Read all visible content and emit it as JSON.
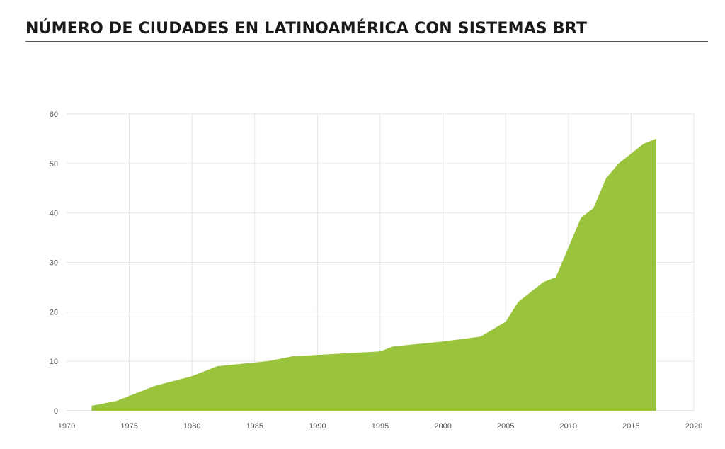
{
  "title": "NÚMERO DE CIUDADES EN LATINOAMÉRICA CON SISTEMAS BRT",
  "chart_data": {
    "type": "area",
    "title": "NÚMERO DE CIUDADES EN LATINOAMÉRICA CON SISTEMAS BRT",
    "xlabel": "",
    "ylabel": "",
    "xlim": [
      1970,
      2020
    ],
    "ylim": [
      0,
      60
    ],
    "x_ticks": [
      1970,
      1975,
      1980,
      1985,
      1990,
      1995,
      2000,
      2005,
      2010,
      2015,
      2020
    ],
    "y_ticks": [
      0,
      10,
      20,
      30,
      40,
      50,
      60
    ],
    "grid": true,
    "color": "#9ac43b",
    "x": [
      1972,
      1974,
      1976,
      1977,
      1980,
      1982,
      1986,
      1988,
      1995,
      1996,
      2000,
      2003,
      2005,
      2006,
      2008,
      2009,
      2011,
      2012,
      2013,
      2014,
      2015,
      2016,
      2017
    ],
    "values": [
      1,
      2,
      4,
      5,
      7,
      9,
      10,
      11,
      12,
      13,
      14,
      15,
      18,
      22,
      26,
      27,
      39,
      41,
      47,
      50,
      52,
      54,
      55
    ]
  }
}
